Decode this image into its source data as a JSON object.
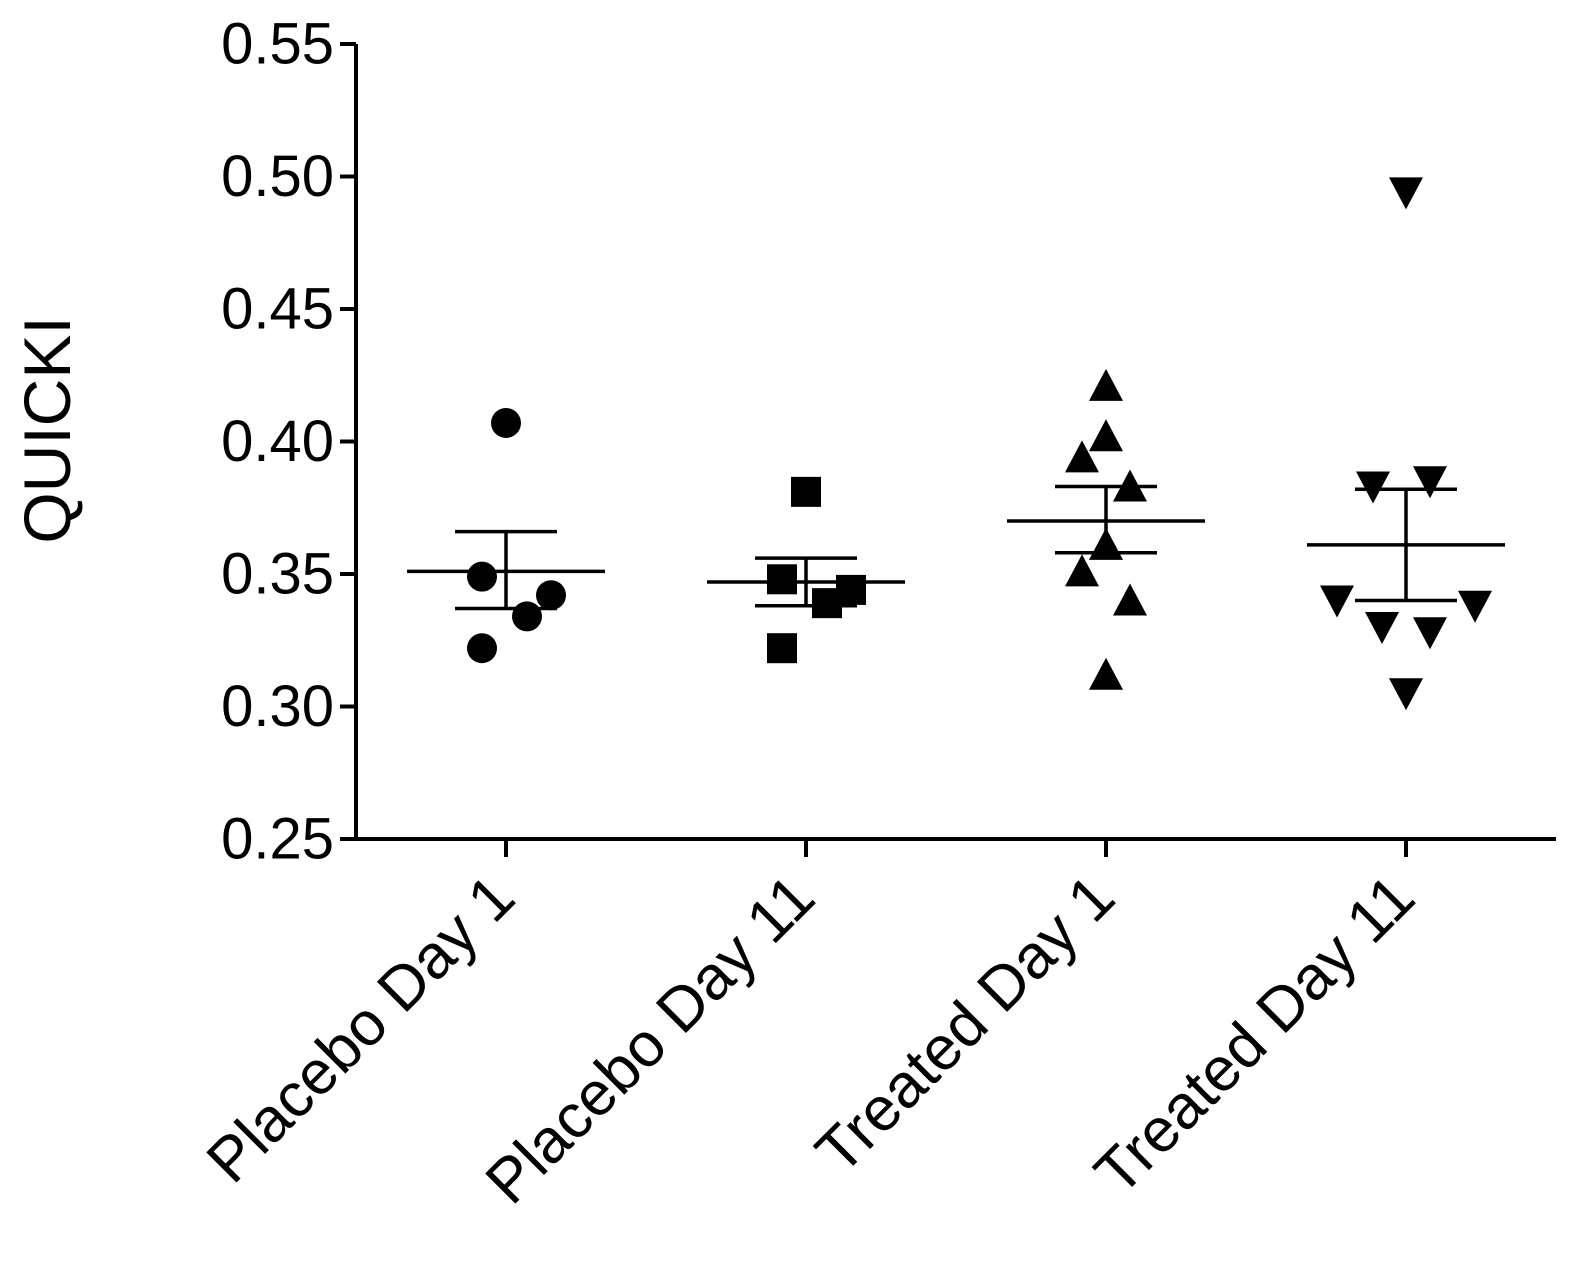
{
  "chart_data": {
    "type": "scatter",
    "subtype": "dot-plot-with-mean-and-sem",
    "title": "",
    "xlabel": "",
    "ylabel": "QUICKI",
    "ylim": [
      0.25,
      0.55
    ],
    "yticks": [
      0.25,
      0.3,
      0.35,
      0.4,
      0.45,
      0.5,
      0.55
    ],
    "ytick_labels": [
      "0.25",
      "0.30",
      "0.35",
      "0.40",
      "0.45",
      "0.50",
      "0.55"
    ],
    "grid": false,
    "categories": [
      "Placebo Day 1",
      "Placebo Day 11",
      "Treated Day 1",
      "Treated Day 11"
    ],
    "colors": {
      "marker": "#000000",
      "axis": "#000000"
    },
    "series": [
      {
        "name": "Placebo Day 1",
        "marker": "circle",
        "points": [
          {
            "offset": 0.0,
            "y": 0.407
          },
          {
            "offset": -0.08,
            "y": 0.349
          },
          {
            "offset": 0.15,
            "y": 0.342
          },
          {
            "offset": 0.07,
            "y": 0.334
          },
          {
            "offset": -0.08,
            "y": 0.322
          }
        ],
        "mean": 0.351,
        "sem_upper": 0.366,
        "sem_lower": 0.337
      },
      {
        "name": "Placebo Day 11",
        "marker": "square",
        "points": [
          {
            "offset": 0.0,
            "y": 0.381
          },
          {
            "offset": -0.08,
            "y": 0.348
          },
          {
            "offset": 0.15,
            "y": 0.344
          },
          {
            "offset": 0.07,
            "y": 0.339
          },
          {
            "offset": -0.08,
            "y": 0.322
          }
        ],
        "mean": 0.347,
        "sem_upper": 0.356,
        "sem_lower": 0.338
      },
      {
        "name": "Treated Day 1",
        "marker": "triangle-up",
        "points": [
          {
            "offset": 0.0,
            "y": 0.421
          },
          {
            "offset": 0.0,
            "y": 0.402
          },
          {
            "offset": -0.08,
            "y": 0.394
          },
          {
            "offset": 0.08,
            "y": 0.383
          },
          {
            "offset": 0.0,
            "y": 0.361
          },
          {
            "offset": -0.08,
            "y": 0.351
          },
          {
            "offset": 0.08,
            "y": 0.34
          },
          {
            "offset": 0.0,
            "y": 0.312
          }
        ],
        "mean": 0.37,
        "sem_upper": 0.383,
        "sem_lower": 0.358
      },
      {
        "name": "Treated Day 11",
        "marker": "triangle-down",
        "points": [
          {
            "offset": 0.0,
            "y": 0.494
          },
          {
            "offset": 0.08,
            "y": 0.385
          },
          {
            "offset": -0.11,
            "y": 0.383
          },
          {
            "offset": -0.23,
            "y": 0.34
          },
          {
            "offset": 0.23,
            "y": 0.338
          },
          {
            "offset": -0.08,
            "y": 0.33
          },
          {
            "offset": 0.08,
            "y": 0.328
          },
          {
            "offset": 0.0,
            "y": 0.305
          }
        ],
        "mean": 0.361,
        "sem_upper": 0.382,
        "sem_lower": 0.34
      }
    ]
  }
}
